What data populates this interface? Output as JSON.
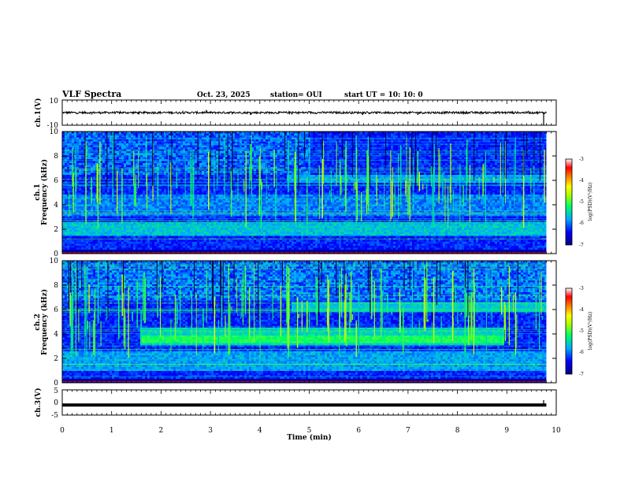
{
  "header": {
    "title": "VLF Spectra",
    "date": "Oct. 23, 2025",
    "station": "station= OUI",
    "start_ut": "start  UT =   10: 10: 0"
  },
  "chart_data": [
    {
      "type": "line",
      "name": "ch1-waveform",
      "ylabel": "ch.1(V)",
      "ylim": [
        -10,
        10
      ],
      "yticks": [
        "10",
        "-10"
      ],
      "level_v": 0,
      "xlim_min": [
        0,
        10
      ],
      "data_end_min": 9.8
    },
    {
      "type": "heatmap",
      "name": "ch1-spectrogram",
      "ylabel_line1": "ch.1",
      "ylabel_line2": "Frequency (kHz)",
      "ylim_khz": [
        0,
        10
      ],
      "yticks": [
        "0",
        "2",
        "4",
        "6",
        "8",
        "10"
      ],
      "colorbar": {
        "label": "log(PSD)(V²/Hz)",
        "range": [
          -7,
          -3
        ],
        "ticks": [
          "-3",
          "-4",
          "-5",
          "-6",
          "-7"
        ],
        "colors": [
          "#000080",
          "#0000ff",
          "#00aaff",
          "#00ff66",
          "#aaff00",
          "#ffff00",
          "#ff7700",
          "#ff0000",
          "#ffffff"
        ]
      },
      "background_level": -6.4,
      "emission_band_khz": [
        5.8,
        6.4
      ],
      "low_freq_band_khz": [
        1.5,
        2.6
      ]
    },
    {
      "type": "heatmap",
      "name": "ch2-spectrogram",
      "ylabel_line1": "ch.2",
      "ylabel_line2": "Frequency (kHz)",
      "ylim_khz": [
        0,
        10
      ],
      "yticks": [
        "0",
        "2",
        "4",
        "6",
        "8",
        "10"
      ],
      "colorbar": {
        "label": "log(PSD)(V²/Hz)",
        "range": [
          -7,
          -3
        ],
        "ticks": [
          "-3",
          "-4",
          "-5",
          "-6",
          "-7"
        ]
      },
      "enhanced_band_khz": [
        3.0,
        4.5
      ],
      "enhanced_interval_min": [
        1.55,
        8.9
      ],
      "emission_band_khz": [
        5.8,
        6.6
      ]
    },
    {
      "type": "line",
      "name": "ch3-waveform",
      "ylabel": "ch.3(V)",
      "ylim": [
        -5,
        5
      ],
      "yticks": [
        "5",
        "0",
        "-5"
      ],
      "level_v": -1.0,
      "xlabel": "Time (min)",
      "xticks": [
        "0",
        "1",
        "2",
        "3",
        "4",
        "5",
        "6",
        "7",
        "8",
        "9",
        "10"
      ],
      "xlim_min": [
        0,
        10
      ],
      "data_end_min": 9.8
    }
  ]
}
